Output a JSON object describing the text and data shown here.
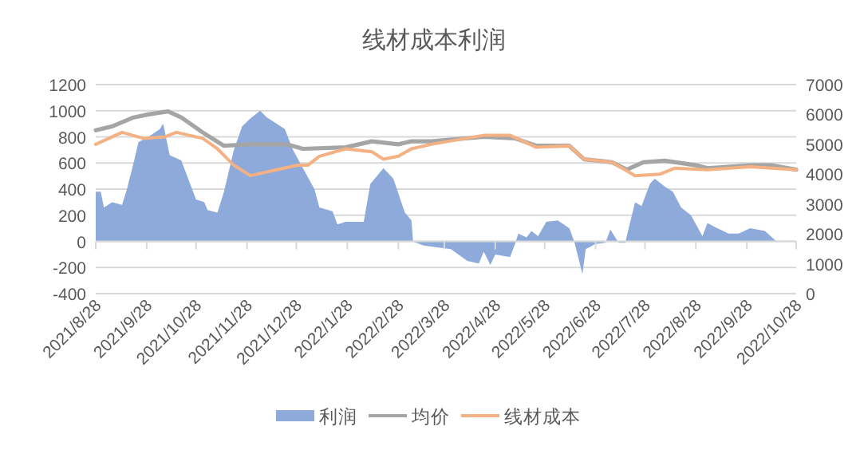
{
  "chart_data": {
    "type": "area",
    "title": "线材成本利润",
    "legend": "bottom",
    "grid": "y",
    "xlim": [
      "2021-08-28",
      "2022-10-28"
    ],
    "xticks": [
      {
        "value": "2021-08-28",
        "label": "2021/8/28"
      },
      {
        "value": "2021-09-28",
        "label": "2021/9/28"
      },
      {
        "value": "2021-10-28",
        "label": "2021/10/28"
      },
      {
        "value": "2021-11-28",
        "label": "2021/11/28"
      },
      {
        "value": "2021-12-28",
        "label": "2021/12/28"
      },
      {
        "value": "2022-01-28",
        "label": "2022/1/28"
      },
      {
        "value": "2022-02-28",
        "label": "2022/2/28"
      },
      {
        "value": "2022-03-28",
        "label": "2022/3/28"
      },
      {
        "value": "2022-04-28",
        "label": "2022/4/28"
      },
      {
        "value": "2022-05-28",
        "label": "2022/5/28"
      },
      {
        "value": "2022-06-28",
        "label": "2022/6/28"
      },
      {
        "value": "2022-07-28",
        "label": "2022/7/28"
      },
      {
        "value": "2022-08-28",
        "label": "2022/8/28"
      },
      {
        "value": "2022-09-28",
        "label": "2022/9/28"
      },
      {
        "value": "2022-10-28",
        "label": "2022/10/28"
      }
    ],
    "ylim": [
      -400,
      1200
    ],
    "yticks": [
      -400,
      -200,
      0,
      200,
      400,
      600,
      800,
      1000,
      1200
    ],
    "y2lim": [
      0,
      7000
    ],
    "y2ticks": [
      0,
      1000,
      2000,
      3000,
      4000,
      5000,
      6000,
      7000
    ],
    "series": [
      {
        "name": "利润",
        "color": "#8eaadb",
        "x": [
          "2021-08-28",
          "2021-08-31",
          "2021-09-02",
          "2021-09-07",
          "2021-09-13",
          "2021-09-16",
          "2021-09-20",
          "2021-09-23",
          "2021-09-29",
          "2021-10-06",
          "2021-10-08",
          "2021-10-12",
          "2021-10-19",
          "2021-10-25",
          "2021-10-28",
          "2021-11-02",
          "2021-11-04",
          "2021-11-10",
          "2021-11-14",
          "2021-11-20",
          "2021-11-25",
          "2021-11-30",
          "2021-12-06",
          "2021-12-10",
          "2021-12-16",
          "2021-12-21",
          "2021-12-26",
          "2022-01-01",
          "2022-01-08",
          "2022-01-11",
          "2022-01-19",
          "2022-01-22",
          "2022-01-27",
          "2022-02-07",
          "2022-02-11",
          "2022-02-19",
          "2022-02-25",
          "2022-03-04",
          "2022-03-08",
          "2022-03-09",
          "2022-03-15",
          "2022-03-20",
          "2022-04-01",
          "2022-04-11",
          "2022-04-18",
          "2022-04-21",
          "2022-04-25",
          "2022-04-28",
          "2022-05-07",
          "2022-05-10",
          "2022-05-12",
          "2022-05-17",
          "2022-05-20",
          "2022-05-24",
          "2022-05-29",
          "2022-06-05",
          "2022-06-12",
          "2022-06-15",
          "2022-06-20",
          "2022-06-22",
          "2022-06-28",
          "2022-07-04",
          "2022-07-07",
          "2022-07-12",
          "2022-07-16",
          "2022-07-22",
          "2022-07-26",
          "2022-07-31",
          "2022-08-03",
          "2022-08-09",
          "2022-08-14",
          "2022-08-19",
          "2022-08-25",
          "2022-09-01",
          "2022-09-04",
          "2022-09-10",
          "2022-09-17",
          "2022-09-23",
          "2022-09-30",
          "2022-10-09",
          "2022-10-16"
        ],
        "values": [
          380,
          380,
          260,
          300,
          280,
          400,
          600,
          760,
          800,
          860,
          900,
          660,
          620,
          420,
          320,
          300,
          240,
          220,
          380,
          700,
          880,
          940,
          1000,
          950,
          900,
          860,
          700,
          560,
          400,
          260,
          230,
          130,
          150,
          150,
          440,
          560,
          480,
          220,
          160,
          0,
          -30,
          -40,
          -60,
          -150,
          -170,
          -80,
          -180,
          -100,
          -120,
          -20,
          60,
          30,
          80,
          40,
          150,
          160,
          100,
          0,
          -250,
          -60,
          -20,
          -10,
          90,
          -10,
          -10,
          300,
          270,
          440,
          480,
          420,
          380,
          260,
          200,
          40,
          140,
          100,
          60,
          60,
          100,
          80,
          0
        ]
      },
      {
        "name": "均价",
        "type": "line",
        "axis": "y2",
        "color": "#a5a5a5",
        "x": [
          "2021-08-28",
          "2021-09-07",
          "2021-09-20",
          "2021-09-29",
          "2021-10-11",
          "2021-10-19",
          "2021-11-01",
          "2021-11-14",
          "2021-11-30",
          "2021-12-22",
          "2022-01-01",
          "2022-01-27",
          "2022-02-12",
          "2022-02-28",
          "2022-03-08",
          "2022-03-20",
          "2022-04-21",
          "2022-05-10",
          "2022-05-23",
          "2022-06-12",
          "2022-06-21",
          "2022-07-08",
          "2022-07-17",
          "2022-07-27",
          "2022-08-09",
          "2022-08-28",
          "2022-09-04",
          "2022-09-30",
          "2022-10-13",
          "2022-10-28"
        ],
        "values": [
          5470,
          5600,
          5900,
          6000,
          6100,
          5900,
          5400,
          4950,
          5000,
          5000,
          4850,
          4900,
          5100,
          5000,
          5100,
          5100,
          5250,
          5200,
          4950,
          4950,
          4500,
          4400,
          4150,
          4400,
          4450,
          4300,
          4200,
          4300,
          4300,
          4150
        ]
      },
      {
        "name": "线材成本",
        "type": "line",
        "axis": "y2",
        "color": "#f4b183",
        "x": [
          "2021-08-28",
          "2021-09-13",
          "2021-09-26",
          "2021-10-09",
          "2021-10-16",
          "2021-11-01",
          "2021-11-10",
          "2021-11-20",
          "2021-11-30",
          "2021-12-16",
          "2021-12-29",
          "2022-01-04",
          "2022-01-11",
          "2022-01-27",
          "2022-02-12",
          "2022-02-19",
          "2022-02-28",
          "2022-03-08",
          "2022-03-20",
          "2022-04-21",
          "2022-05-07",
          "2022-05-23",
          "2022-06-12",
          "2022-06-21",
          "2022-07-08",
          "2022-07-22",
          "2022-08-06",
          "2022-08-15",
          "2022-09-04",
          "2022-09-30",
          "2022-10-28"
        ],
        "values": [
          5000,
          5400,
          5200,
          5250,
          5400,
          5200,
          4850,
          4300,
          3950,
          4150,
          4300,
          4300,
          4600,
          4850,
          4750,
          4500,
          4600,
          4850,
          5000,
          5300,
          5300,
          4900,
          4950,
          4500,
          4400,
          3950,
          4000,
          4200,
          4150,
          4250,
          4150
        ]
      }
    ]
  }
}
